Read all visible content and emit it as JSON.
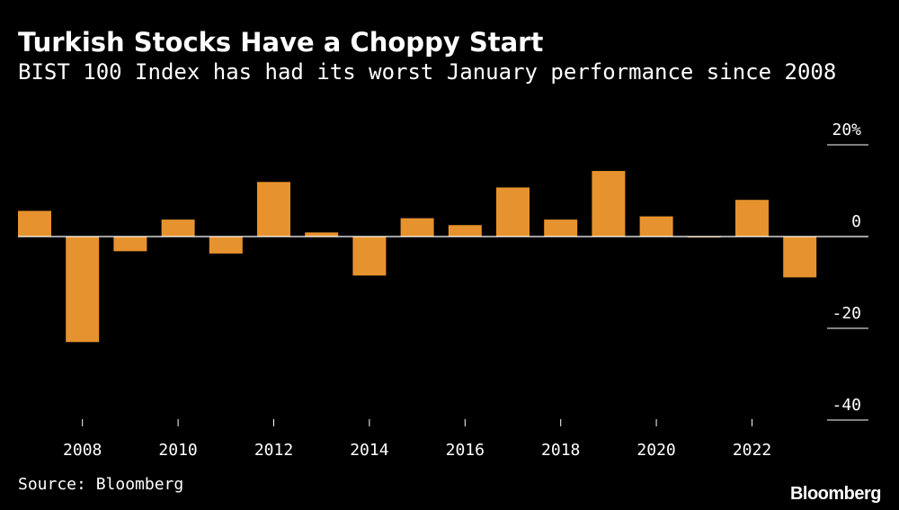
{
  "chart_data": {
    "type": "bar",
    "title": "Turkish Stocks Have a Choppy Start",
    "subtitle": "BIST 100 Index has had its worst January performance since 2008",
    "years": [
      2007,
      2008,
      2009,
      2010,
      2011,
      2012,
      2013,
      2014,
      2015,
      2016,
      2017,
      2018,
      2019,
      2020,
      2021,
      2022,
      2023
    ],
    "values": [
      5.6,
      -23.0,
      -3.2,
      3.7,
      -3.7,
      11.9,
      0.9,
      -8.5,
      4.0,
      2.5,
      10.7,
      3.7,
      14.3,
      4.4,
      -0.2,
      8.0,
      -8.9
    ],
    "x_ticks": [
      "2008",
      "2010",
      "2012",
      "2014",
      "2016",
      "2018",
      "2020",
      "2022"
    ],
    "y_ticks": [
      "20%",
      "0",
      "-20",
      "-40"
    ],
    "y_tick_values": [
      20,
      0,
      -20,
      -40
    ],
    "ylim": [
      -40,
      20
    ],
    "bar_color": "#e6922e",
    "source": "Source: Bloomberg",
    "brand": "Bloomberg"
  }
}
